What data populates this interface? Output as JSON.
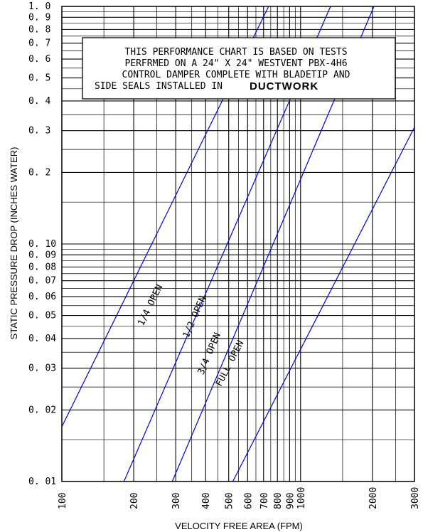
{
  "chart_data": {
    "type": "line",
    "title": "",
    "xlabel": "VELOCITY FREE AREA (FPM)",
    "ylabel": "STATIC PRESSURE DROP (INCHES WATER)",
    "x_scale": "log",
    "y_scale": "log",
    "xlim": [
      100,
      3000
    ],
    "ylim": [
      0.01,
      1.0
    ],
    "grid": true,
    "x_ticks": [
      {
        "value": 100,
        "label": "100"
      },
      {
        "value": 200,
        "label": "200"
      },
      {
        "value": 300,
        "label": "300"
      },
      {
        "value": 400,
        "label": "400"
      },
      {
        "value": 500,
        "label": "500"
      },
      {
        "value": 600,
        "label": "600"
      },
      {
        "value": 700,
        "label": "700"
      },
      {
        "value": 800,
        "label": "800"
      },
      {
        "value": 900,
        "label": "900"
      },
      {
        "value": 1000,
        "label": "1000"
      },
      {
        "value": 2000,
        "label": "2000"
      },
      {
        "value": 3000,
        "label": "3000"
      }
    ],
    "y_ticks": [
      {
        "value": 0.01,
        "label": "0. 01"
      },
      {
        "value": 0.02,
        "label": "0. 02"
      },
      {
        "value": 0.03,
        "label": "0. 03"
      },
      {
        "value": 0.04,
        "label": "0. 04"
      },
      {
        "value": 0.05,
        "label": "0. 05"
      },
      {
        "value": 0.06,
        "label": "0. 06"
      },
      {
        "value": 0.07,
        "label": "0. 07"
      },
      {
        "value": 0.08,
        "label": "0. 08"
      },
      {
        "value": 0.09,
        "label": "0. 09"
      },
      {
        "value": 0.1,
        "label": "0. 10"
      },
      {
        "value": 0.2,
        "label": "0. 2"
      },
      {
        "value": 0.3,
        "label": "0. 3"
      },
      {
        "value": 0.4,
        "label": "0. 4"
      },
      {
        "value": 0.5,
        "label": "0. 5"
      },
      {
        "value": 0.6,
        "label": "0. 6"
      },
      {
        "value": 0.7,
        "label": "0. 7"
      },
      {
        "value": 0.8,
        "label": "0. 8"
      },
      {
        "value": 0.9,
        "label": "0. 9"
      },
      {
        "value": 1.0,
        "label": "1. 0"
      }
    ],
    "series": [
      {
        "name": "1/4 OPEN",
        "x": [
          100,
          735
        ],
        "y": [
          0.017,
          1.0
        ],
        "color": "#0000cc"
      },
      {
        "name": "1/2 OPEN",
        "x": [
          182,
          1335
        ],
        "y": [
          0.01,
          1.0
        ],
        "color": "#0000cc"
      },
      {
        "name": "3/4 OPEN",
        "x": [
          290,
          2030
        ],
        "y": [
          0.01,
          1.0
        ],
        "color": "#0000cc"
      },
      {
        "name": "FULL OPEN",
        "x": [
          520,
          3000
        ],
        "y": [
          0.01,
          0.31
        ],
        "color": "#0000cc"
      }
    ],
    "annotations": {
      "note_lines": [
        "THIS PERFORMANCE CHART IS BASED ON TESTS",
        "PERFRMED ON A 24\" X 24\" WESTVENT PBX-4H6",
        "CONTROL DAMPER COMPLETE WITH BLADETIP AND",
        "SIDE SEALS INSTALLED IN"
      ],
      "note_emphasis": "DUCTWORK"
    }
  }
}
